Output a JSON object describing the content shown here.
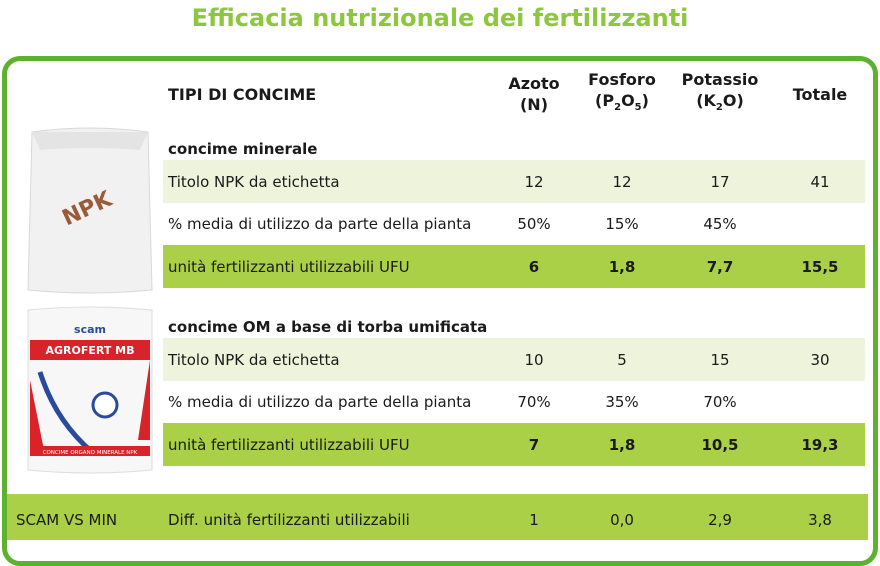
{
  "title": "Efficacia nutrizionale dei fertilizzanti",
  "header": {
    "type_label": "TIPI DI CONCIME",
    "columns": [
      {
        "name": "Azoto",
        "formula": [
          {
            "text": "(N)"
          }
        ]
      },
      {
        "name": "Fosforo",
        "formula": [
          {
            "text": "(P"
          },
          {
            "sub": "2"
          },
          {
            "text": "O"
          },
          {
            "sub": "5"
          },
          {
            "text": ")"
          }
        ]
      },
      {
        "name": "Potassio",
        "formula": [
          {
            "text": "(K"
          },
          {
            "sub": "2"
          },
          {
            "text": "O)"
          }
        ]
      },
      {
        "name": "Totale",
        "formula": []
      }
    ]
  },
  "sections": [
    {
      "title": "concime minerale",
      "rows": [
        {
          "label": "Titolo NPK da etichetta",
          "values": [
            "12",
            "12",
            "17",
            "41"
          ]
        },
        {
          "label": "% media di utilizzo da parte della pianta",
          "values": [
            "50%",
            "15%",
            "45%"
          ]
        },
        {
          "label": "unità fertilizzanti utilizzabili UFU",
          "values": [
            "6",
            "1,8",
            "7,7",
            "15,5"
          ]
        }
      ]
    },
    {
      "title": "concime OM a base di torba umificata",
      "rows": [
        {
          "label": "Titolo NPK da etichetta",
          "values": [
            "10",
            "5",
            "15",
            "30"
          ]
        },
        {
          "label": "% media di utilizzo da parte della pianta",
          "values": [
            "70%",
            "35%",
            "70%"
          ]
        },
        {
          "label": "unità fertilizzanti utilizzabili UFU",
          "values": [
            "7",
            "1,8",
            "10,5",
            "19,3"
          ]
        }
      ]
    }
  ],
  "comparison": {
    "label": "SCAM VS MIN",
    "description": "Diff. unità fertilizzanti utilizzabili",
    "values": [
      "1",
      "0,0",
      "2,9",
      "3,8"
    ]
  },
  "products": [
    {
      "name": "NPK"
    },
    {
      "brand": "scam",
      "name": "AGROFERT MB",
      "footer": "CONCIME ORGANO MINERALE NPK"
    }
  ]
}
